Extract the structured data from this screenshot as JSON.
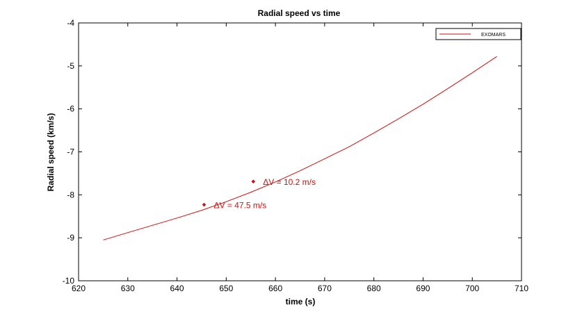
{
  "chart_data": {
    "type": "line",
    "title": "Radial speed vs time",
    "xlabel": "time (s)",
    "ylabel": "Radial speed (km/s)",
    "xlim": [
      620,
      710
    ],
    "ylim": [
      -10,
      -4
    ],
    "xticks": [
      620,
      630,
      640,
      650,
      660,
      670,
      680,
      690,
      700,
      710
    ],
    "yticks": [
      -4,
      -5,
      -6,
      -7,
      -8,
      -9,
      -10
    ],
    "grid": false,
    "legend": {
      "placement": "top-right",
      "entries": [
        "EXOMARS"
      ]
    },
    "series": [
      {
        "name": "EXOMARS",
        "color": "#cc1111",
        "x": [
          625,
          630,
          635,
          640,
          645,
          650,
          655,
          660,
          665,
          670,
          675,
          680,
          685,
          690,
          695,
          700,
          705
        ],
        "y": [
          -9.05,
          -8.88,
          -8.71,
          -8.54,
          -8.36,
          -8.16,
          -7.94,
          -7.7,
          -7.44,
          -7.16,
          -6.88,
          -6.56,
          -6.23,
          -5.89,
          -5.53,
          -5.16,
          -4.78
        ]
      }
    ],
    "annotations": [
      {
        "x": 645.5,
        "y": -8.23,
        "text": "ΔV = 47.5 m/s"
      },
      {
        "x": 655.5,
        "y": -7.69,
        "text": "ΔV = 10.2 m/s"
      }
    ]
  }
}
